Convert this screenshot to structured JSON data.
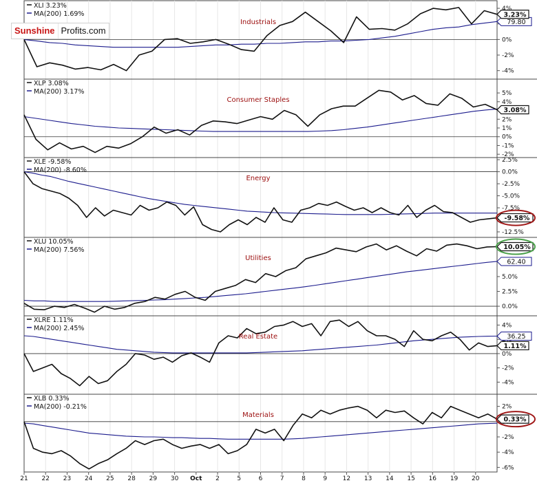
{
  "logo": {
    "part1": "Sunshine",
    "part2": "Profits.com"
  },
  "x_dates": [
    "21",
    "22",
    "23",
    "24",
    "25",
    "28",
    "29",
    "30",
    "Oct",
    "2",
    "5",
    "6",
    "7",
    "8",
    "9",
    "12",
    "13",
    "14",
    "15",
    "16",
    "19",
    "20"
  ],
  "colors": {
    "price": "#111111",
    "ma": "#1a1a8c",
    "circle_red": "#a01818",
    "circle_green": "#4aa04a"
  },
  "chart_data": [
    {
      "type": "line",
      "title": "Industrials",
      "legend": {
        "price": "XLI 3.23%",
        "ma": "MA(200) 1.69%"
      },
      "last_label": "3.23%",
      "ma_label": "79.80",
      "circle": "",
      "ylim": [
        -5,
        4.8
      ],
      "yticks": [
        {
          "v": 4,
          "t": "4%"
        },
        {
          "v": 2,
          "t": "2%"
        },
        {
          "v": 0,
          "t": "0%"
        },
        {
          "v": -2,
          "t": "-2%"
        },
        {
          "v": -4,
          "t": "-4%"
        }
      ],
      "price": [
        0,
        -3.5,
        -3,
        -3.3,
        -3.8,
        -3.6,
        -3.9,
        -3.2,
        -4,
        -2,
        -1.5,
        0,
        0.1,
        -0.5,
        -0.3,
        0,
        -0.6,
        -1.3,
        -1.5,
        0.5,
        1.8,
        2.3,
        3.5,
        2.3,
        1.1,
        -0.4,
        2.9,
        1.3,
        1.4,
        1.2,
        2,
        3.3,
        4,
        3.8,
        4.1,
        2,
        3.7,
        3.23
      ],
      "ma": [
        0,
        -0.2,
        -0.4,
        -0.5,
        -0.7,
        -0.8,
        -0.9,
        -1,
        -1,
        -1,
        -1,
        -1,
        -1,
        -0.9,
        -0.8,
        -0.7,
        -0.7,
        -0.6,
        -0.6,
        -0.5,
        -0.5,
        -0.4,
        -0.3,
        -0.3,
        -0.2,
        -0.2,
        -0.1,
        0,
        0.2,
        0.4,
        0.7,
        1,
        1.3,
        1.5,
        1.6,
        1.9,
        2.1,
        2.3
      ]
    },
    {
      "type": "line",
      "title": "Consumer Staples",
      "legend": {
        "price": "XLP 3.08%",
        "ma": "MA(200) 3.17%"
      },
      "last_label": "3.08%",
      "ma_label": "",
      "circle": "",
      "ylim": [
        -2.3,
        6.5
      ],
      "yticks": [
        {
          "v": 5,
          "t": "5%"
        },
        {
          "v": 4,
          "t": "4%"
        },
        {
          "v": 3,
          "t": "3%"
        },
        {
          "v": 2,
          "t": "2%"
        },
        {
          "v": 1,
          "t": "1%"
        },
        {
          "v": 0,
          "t": "0%"
        },
        {
          "v": -1,
          "t": "-1%"
        },
        {
          "v": -2,
          "t": "-2%"
        }
      ],
      "price": [
        2.5,
        -0.3,
        -1.5,
        -0.7,
        -1.4,
        -1.1,
        -1.8,
        -1.1,
        -1.3,
        -0.8,
        0,
        1.1,
        0.4,
        0.8,
        0.2,
        1.3,
        1.8,
        1.7,
        1.5,
        1.9,
        2.3,
        2,
        3,
        2.5,
        1.2,
        2.5,
        3.2,
        3.5,
        3.5,
        4.4,
        5.3,
        5.1,
        4.2,
        4.7,
        3.8,
        3.6,
        4.9,
        4.4,
        3.4,
        3.7,
        3.08
      ],
      "ma": [
        2.3,
        2.1,
        1.9,
        1.7,
        1.5,
        1.35,
        1.2,
        1.1,
        1,
        0.95,
        0.9,
        0.85,
        0.8,
        0.75,
        0.7,
        0.65,
        0.6,
        0.6,
        0.6,
        0.6,
        0.6,
        0.6,
        0.6,
        0.6,
        0.6,
        0.65,
        0.7,
        0.8,
        0.95,
        1.1,
        1.3,
        1.5,
        1.7,
        1.9,
        2.1,
        2.3,
        2.5,
        2.7,
        2.9,
        3.05,
        3.17
      ]
    },
    {
      "type": "line",
      "title": "Energy",
      "legend": {
        "price": "XLE -9.58%",
        "ma": "MA(200) -8.60%"
      },
      "last_label": "-9.58%",
      "ma_label": "",
      "circle": "red",
      "ylim": [
        -13.5,
        2.8
      ],
      "yticks": [
        {
          "v": 2.5,
          "t": "2.5%"
        },
        {
          "v": 0,
          "t": "0.0%"
        },
        {
          "v": -2.5,
          "t": "-2.5%"
        },
        {
          "v": -5,
          "t": "-5.0%"
        },
        {
          "v": -7.5,
          "t": "-7.5%"
        },
        {
          "v": -10,
          "t": "-10.0%"
        },
        {
          "v": -12.5,
          "t": "-12.5%"
        }
      ],
      "price": [
        0,
        -2.5,
        -3.5,
        -4,
        -4.5,
        -5.5,
        -7,
        -9.5,
        -7.5,
        -9.2,
        -8,
        -8.5,
        -9,
        -7,
        -8,
        -7.5,
        -6.3,
        -7,
        -9,
        -7.3,
        -11,
        -12,
        -12.5,
        -11,
        -10,
        -11,
        -9.5,
        -10.5,
        -7.5,
        -10,
        -10.5,
        -8,
        -7.5,
        -6.6,
        -7,
        -6.3,
        -7.2,
        -8,
        -7.5,
        -8.5,
        -7.5,
        -8.5,
        -9,
        -7,
        -9.5,
        -8,
        -7,
        -8.3,
        -8.5,
        -9.5,
        -10.5,
        -10,
        -9.8,
        -9.58
      ],
      "ma": [
        0,
        -0.3,
        -0.7,
        -1,
        -1.5,
        -2,
        -2.4,
        -2.8,
        -3.2,
        -3.6,
        -4,
        -4.4,
        -4.8,
        -5.2,
        -5.6,
        -5.9,
        -6.2,
        -6.5,
        -6.8,
        -7,
        -7.2,
        -7.4,
        -7.6,
        -7.8,
        -8,
        -8.2,
        -8.3,
        -8.4,
        -8.5,
        -8.55,
        -8.6,
        -8.65,
        -8.7,
        -8.75,
        -8.8,
        -8.85,
        -8.9,
        -8.9,
        -8.9,
        -8.9,
        -8.9,
        -8.85,
        -8.8,
        -8.75,
        -8.7,
        -8.65,
        -8.6,
        -8.6,
        -8.6,
        -8.6,
        -8.6,
        -8.6,
        -8.6,
        -8.6
      ]
    },
    {
      "type": "line",
      "title": "Utilities",
      "legend": {
        "price": "XLU 10.05%",
        "ma": "MA(200) 7.56%"
      },
      "last_label": "10.05%",
      "ma_label": "62.40",
      "circle": "green",
      "ylim": [
        -1.5,
        11.5
      ],
      "yticks": [
        {
          "v": 10,
          "t": "10.0%"
        },
        {
          "v": 7.5,
          "t": "7.5%"
        },
        {
          "v": 5,
          "t": "5.0%"
        },
        {
          "v": 2.5,
          "t": "2.5%"
        },
        {
          "v": 0,
          "t": "0.0%"
        }
      ],
      "price": [
        0.5,
        -0.5,
        -0.6,
        0,
        -0.2,
        0.3,
        -0.3,
        -1,
        0,
        -0.5,
        -0.2,
        0.5,
        0.8,
        1.5,
        1.2,
        2,
        2.5,
        1.5,
        1,
        2.5,
        3,
        3.5,
        4.5,
        4,
        5.5,
        5,
        6,
        6.5,
        8,
        8.5,
        9,
        9.8,
        9.5,
        9.2,
        10,
        10.5,
        9.5,
        10.2,
        9.3,
        8.5,
        9.7,
        9.3,
        10.3,
        10.5,
        10.2,
        9.7,
        10,
        10.05
      ],
      "ma": [
        1,
        0.9,
        0.9,
        0.8,
        0.8,
        0.8,
        0.8,
        0.8,
        0.8,
        0.85,
        0.9,
        0.95,
        1,
        1.05,
        1.1,
        1.2,
        1.3,
        1.4,
        1.5,
        1.65,
        1.8,
        1.95,
        2.1,
        2.3,
        2.5,
        2.7,
        2.9,
        3.1,
        3.3,
        3.55,
        3.8,
        4.05,
        4.3,
        4.55,
        4.8,
        5.05,
        5.3,
        5.55,
        5.8,
        6,
        6.2,
        6.4,
        6.6,
        6.8,
        7,
        7.2,
        7.4,
        7.56
      ]
    },
    {
      "type": "line",
      "title": "Real Estate",
      "legend": {
        "price": "XLRE 1.11%",
        "ma": "MA(200) 2.45%"
      },
      "last_label": "1.11%",
      "ma_label": "36.25",
      "circle": "",
      "ylim": [
        -5.6,
        5.2
      ],
      "yticks": [
        {
          "v": 4,
          "t": "4%"
        },
        {
          "v": 2,
          "t": "2%"
        },
        {
          "v": 0,
          "t": "0%"
        },
        {
          "v": -2,
          "t": "-2%"
        },
        {
          "v": -4,
          "t": "-4%"
        }
      ],
      "price": [
        0,
        -2.5,
        -2,
        -1.5,
        -2.8,
        -3.5,
        -4.5,
        -3.2,
        -4.2,
        -3.8,
        -2.5,
        -1.5,
        0,
        -0.2,
        -0.8,
        -0.5,
        -1.2,
        -0.3,
        0.1,
        -0.5,
        -1.2,
        1.5,
        2.5,
        2.2,
        3.5,
        2.8,
        3,
        3.8,
        4,
        4.5,
        3.8,
        4.2,
        2.5,
        4.5,
        4.7,
        3.8,
        4.5,
        3.2,
        2.5,
        2.5,
        2,
        1,
        3.2,
        2,
        1.8,
        2.5,
        3,
        2,
        0.5,
        1.5,
        1,
        1.11
      ],
      "ma": [
        2.5,
        2.4,
        2.2,
        2,
        1.8,
        1.6,
        1.4,
        1.2,
        1,
        0.8,
        0.6,
        0.5,
        0.4,
        0.3,
        0.2,
        0.15,
        0.1,
        0.1,
        0.1,
        0.1,
        0.1,
        0.1,
        0.1,
        0.1,
        0.1,
        0.15,
        0.2,
        0.25,
        0.3,
        0.35,
        0.4,
        0.5,
        0.6,
        0.7,
        0.8,
        0.9,
        1,
        1.1,
        1.2,
        1.35,
        1.5,
        1.65,
        1.8,
        1.9,
        2,
        2.1,
        2.2,
        2.3,
        2.35,
        2.4,
        2.43,
        2.45
      ]
    },
    {
      "type": "line",
      "title": "Materials",
      "legend": {
        "price": "XLB 0.33%",
        "ma": "MA(200) -0.21%"
      },
      "last_label": "0.33%",
      "ma_label": "",
      "circle": "red",
      "ylim": [
        -6.6,
        3.5
      ],
      "yticks": [
        {
          "v": 2,
          "t": "2%"
        },
        {
          "v": 0,
          "t": "0%"
        },
        {
          "v": -2,
          "t": "-2%"
        },
        {
          "v": -4,
          "t": "-4%"
        },
        {
          "v": -6,
          "t": "-6%"
        }
      ],
      "price": [
        0,
        -3.5,
        -4,
        -4.2,
        -3.8,
        -4.5,
        -5.5,
        -6.2,
        -5.5,
        -5,
        -4.2,
        -3.5,
        -2.5,
        -3,
        -2.5,
        -2.3,
        -3,
        -3.5,
        -3.2,
        -3,
        -3.5,
        -3,
        -4.2,
        -3.8,
        -3,
        -1,
        -1.5,
        -1,
        -2.5,
        -0.5,
        1,
        0.5,
        1.5,
        1,
        1.5,
        1.8,
        2,
        1.5,
        0.5,
        1.5,
        1.2,
        1.4,
        0.5,
        -0.3,
        1.2,
        0.5,
        2,
        1.5,
        1,
        0.5,
        1,
        0.33
      ],
      "ma": [
        -0.2,
        -0.3,
        -0.5,
        -0.7,
        -0.9,
        -1.1,
        -1.3,
        -1.5,
        -1.6,
        -1.7,
        -1.8,
        -1.9,
        -1.95,
        -2,
        -2,
        -2.05,
        -2.1,
        -2.1,
        -2.15,
        -2.2,
        -2.2,
        -2.25,
        -2.3,
        -2.3,
        -2.3,
        -2.3,
        -2.3,
        -2.3,
        -2.3,
        -2.25,
        -2.2,
        -2.1,
        -2,
        -1.9,
        -1.8,
        -1.7,
        -1.6,
        -1.5,
        -1.4,
        -1.3,
        -1.2,
        -1.1,
        -1,
        -0.9,
        -0.8,
        -0.7,
        -0.6,
        -0.5,
        -0.4,
        -0.3,
        -0.25,
        -0.21
      ]
    }
  ]
}
